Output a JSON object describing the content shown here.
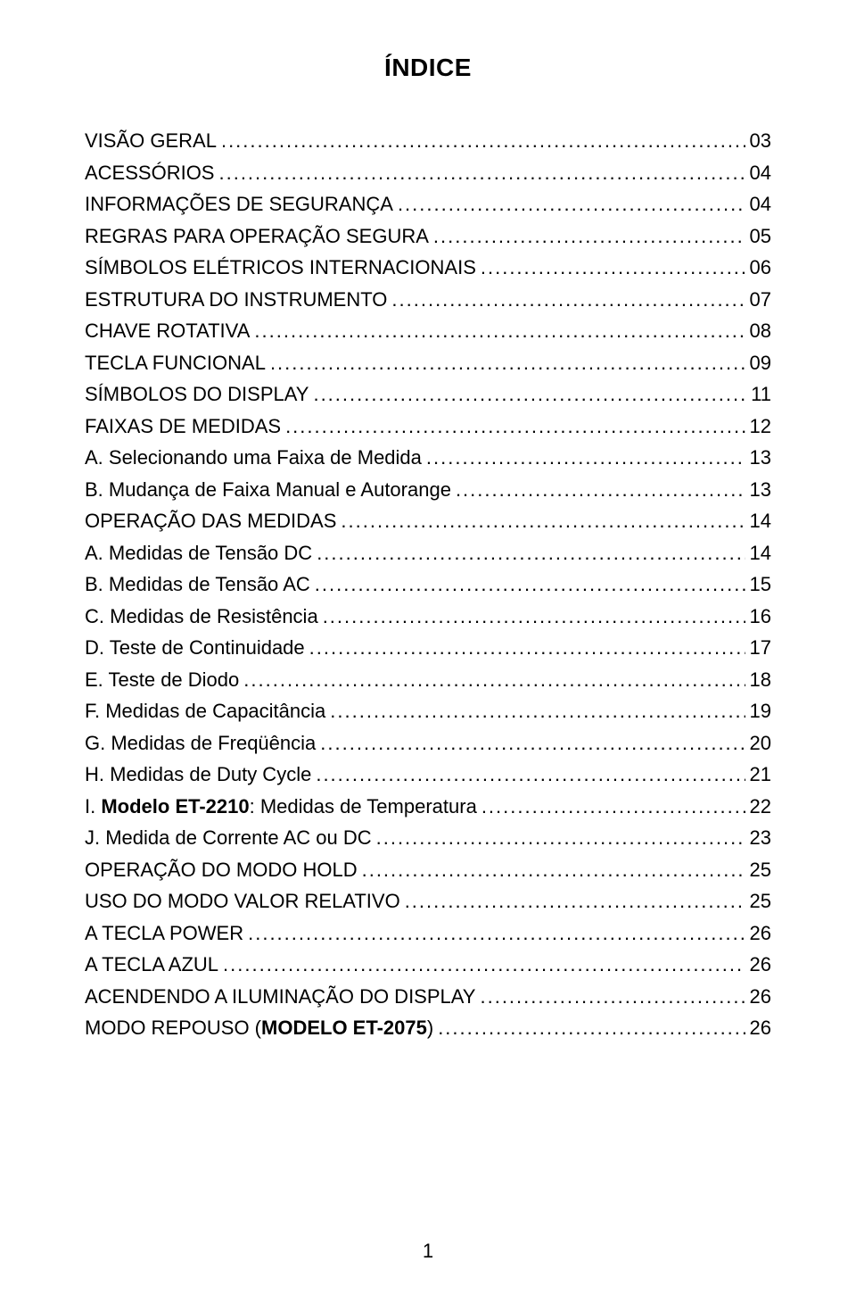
{
  "title": "ÍNDICE",
  "page_number": "1",
  "typography": {
    "title_fontsize": 28,
    "entry_fontsize": 22,
    "font_family": "Arial, Helvetica, sans-serif",
    "text_color": "#000000",
    "background_color": "#ffffff"
  },
  "entries": [
    {
      "label": "VISÃO GERAL",
      "page": "03",
      "bold_span": null
    },
    {
      "label": "ACESSÓRIOS",
      "page": "04",
      "bold_span": null
    },
    {
      "label": "INFORMAÇÕES DE SEGURANÇA",
      "page": "04",
      "bold_span": null
    },
    {
      "label": "REGRAS PARA OPERAÇÃO SEGURA",
      "page": "05",
      "bold_span": null
    },
    {
      "label": "SÍMBOLOS ELÉTRICOS INTERNACIONAIS",
      "page": "06",
      "bold_span": null
    },
    {
      "label": "ESTRUTURA DO INSTRUMENTO",
      "page": "07",
      "bold_span": null
    },
    {
      "label": "CHAVE ROTATIVA",
      "page": "08",
      "bold_span": null
    },
    {
      "label": "TECLA FUNCIONAL",
      "page": "09",
      "bold_span": null
    },
    {
      "label": "SÍMBOLOS DO DISPLAY",
      "page": "11",
      "bold_span": null
    },
    {
      "label": "FAIXAS DE MEDIDAS",
      "page": "12",
      "bold_span": null
    },
    {
      "label": "A. Selecionando uma Faixa de Medida",
      "page": "13",
      "bold_span": null
    },
    {
      "label": "B. Mudança de Faixa Manual e Autorange",
      "page": "13",
      "bold_span": null
    },
    {
      "label": "OPERAÇÃO DAS MEDIDAS",
      "page": "14",
      "bold_span": null
    },
    {
      "label": "A. Medidas de Tensão DC",
      "page": "14",
      "bold_span": null
    },
    {
      "label": "B. Medidas de Tensão AC",
      "page": "15",
      "bold_span": null
    },
    {
      "label": "C. Medidas de Resistência",
      "page": "16",
      "bold_span": null
    },
    {
      "label": "D. Teste de Continuidade",
      "page": "17",
      "bold_span": null
    },
    {
      "label": "E. Teste de Diodo",
      "page": "18",
      "bold_span": null
    },
    {
      "label": "F. Medidas de Capacitância",
      "page": "19",
      "bold_span": null
    },
    {
      "label": "G. Medidas de Freqüência",
      "page": "20",
      "bold_span": null
    },
    {
      "label": "H. Medidas de Duty Cycle",
      "page": "21",
      "bold_span": null
    },
    {
      "label": "I. Modelo ET-2210: Medidas de Temperatura",
      "page": "22",
      "bold_span": "Modelo ET-2210"
    },
    {
      "label": "J. Medida de Corrente AC ou DC",
      "page": "23",
      "bold_span": null
    },
    {
      "label": "OPERAÇÃO DO MODO HOLD",
      "page": "25",
      "bold_span": null
    },
    {
      "label": "USO DO MODO VALOR RELATIVO",
      "page": "25",
      "bold_span": null
    },
    {
      "label": "A TECLA POWER",
      "page": "26",
      "bold_span": null
    },
    {
      "label": "A TECLA AZUL",
      "page": "26",
      "bold_span": null
    },
    {
      "label": "ACENDENDO A ILUMINAÇÃO DO DISPLAY",
      "page": "26",
      "bold_span": null
    },
    {
      "label": "MODO REPOUSO (MODELO ET-2075)",
      "page": "26",
      "bold_span": "MODELO ET-2075"
    }
  ]
}
